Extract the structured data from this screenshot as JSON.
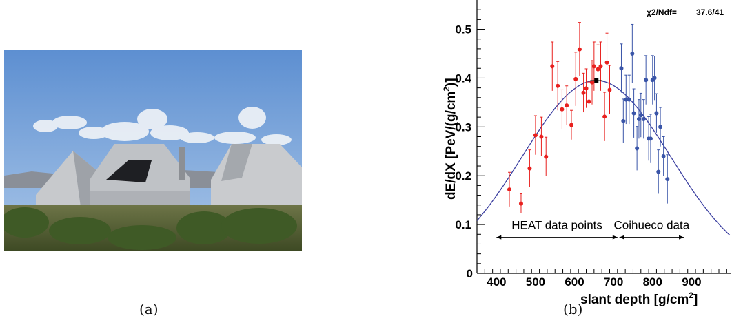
{
  "captions": {
    "a": "(a)",
    "b": "(b)"
  },
  "photo": {
    "sky_color": "#6e9bd6",
    "ground_color": "#5f6a3a",
    "building_color": "#b9bcc0"
  },
  "chart_data": {
    "type": "scatter",
    "xlabel": "slant depth [g/cm2]",
    "ylabel": "dE/dX [PeV/(g/cm2)]",
    "xlim": [
      350,
      1000
    ],
    "ylim": [
      0,
      0.56
    ],
    "x_ticks": [
      400,
      500,
      600,
      700,
      800,
      900
    ],
    "y_ticks": [
      0.1,
      0.2,
      0.3,
      0.4,
      0.5
    ],
    "stats_label": "χ2/Ndf=",
    "stats_value": "37.6/41",
    "fit": {
      "type": "gaisser-hillas-like",
      "xmax": 656,
      "dEdX_max": 0.395
    },
    "max_point": {
      "x": 656,
      "y": 0.395
    },
    "annotations": [
      {
        "text": "HEAT data points",
        "x_from": 400,
        "x_to": 710,
        "y": 0.105
      },
      {
        "text": "Coihueco data",
        "x_from": 715,
        "x_to": 880,
        "y": 0.105
      }
    ],
    "series": [
      {
        "name": "HEAT data points",
        "color": "#e8201e",
        "points": [
          [
            433,
            0.172,
            0.035
          ],
          [
            463,
            0.143,
            0.02
          ],
          [
            485,
            0.215,
            0.038
          ],
          [
            500,
            0.283,
            0.04
          ],
          [
            515,
            0.28,
            0.04
          ],
          [
            527,
            0.239,
            0.04
          ],
          [
            543,
            0.424,
            0.05
          ],
          [
            557,
            0.384,
            0.05
          ],
          [
            568,
            0.336,
            0.04
          ],
          [
            580,
            0.344,
            0.04
          ],
          [
            592,
            0.304,
            0.03
          ],
          [
            603,
            0.398,
            0.055
          ],
          [
            613,
            0.459,
            0.055
          ],
          [
            623,
            0.37,
            0.04
          ],
          [
            630,
            0.379,
            0.04
          ],
          [
            637,
            0.352,
            0.04
          ],
          [
            645,
            0.391,
            0.045
          ],
          [
            650,
            0.424,
            0.05
          ],
          [
            660,
            0.418,
            0.05
          ],
          [
            667,
            0.424,
            0.05
          ],
          [
            677,
            0.321,
            0.05
          ],
          [
            683,
            0.432,
            0.06
          ],
          [
            690,
            0.376,
            0.05
          ]
        ]
      },
      {
        "name": "Coihueco data",
        "color": "#3a55a8",
        "points": [
          [
            720,
            0.42,
            0.05
          ],
          [
            725,
            0.312,
            0.045
          ],
          [
            732,
            0.356,
            0.05
          ],
          [
            740,
            0.356,
            0.05
          ],
          [
            748,
            0.45,
            0.06
          ],
          [
            752,
            0.328,
            0.05
          ],
          [
            760,
            0.256,
            0.045
          ],
          [
            765,
            0.316,
            0.04
          ],
          [
            770,
            0.324,
            0.045
          ],
          [
            777,
            0.316,
            0.04
          ],
          [
            783,
            0.396,
            0.05
          ],
          [
            790,
            0.276,
            0.045
          ],
          [
            795,
            0.276,
            0.05
          ],
          [
            800,
            0.396,
            0.05
          ],
          [
            805,
            0.4,
            0.045
          ],
          [
            810,
            0.328,
            0.04
          ],
          [
            815,
            0.208,
            0.045
          ],
          [
            820,
            0.3,
            0.04
          ],
          [
            828,
            0.24,
            0.04
          ],
          [
            838,
            0.193,
            0.05
          ]
        ]
      }
    ]
  }
}
